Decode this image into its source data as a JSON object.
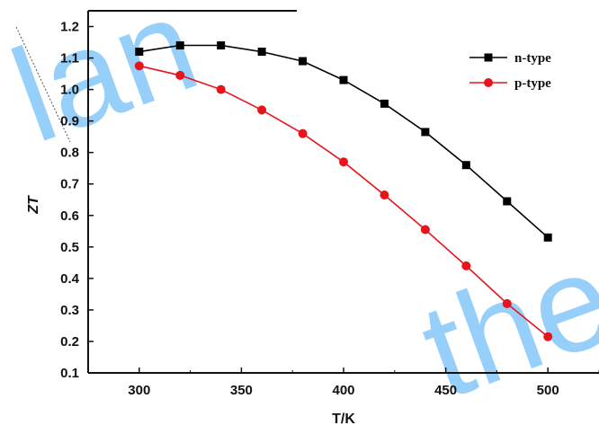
{
  "chart_data": {
    "type": "line",
    "xlabel": "T/K",
    "ylabel": "ZT",
    "xlim": [
      275,
      525
    ],
    "ylim": [
      0.1,
      1.25
    ],
    "x_ticks": [
      300,
      350,
      400,
      450,
      500
    ],
    "y_ticks": [
      0.1,
      0.2,
      0.3,
      0.4,
      0.5,
      0.6,
      0.7,
      0.8,
      0.9,
      1.0,
      1.1,
      1.2
    ],
    "grid": false,
    "legend_position": "top-right",
    "series": [
      {
        "name": "n-type",
        "marker": "square",
        "color": "#000000",
        "x": [
          300,
          320,
          340,
          360,
          380,
          400,
          420,
          440,
          460,
          480,
          500
        ],
        "y": [
          1.12,
          1.14,
          1.14,
          1.12,
          1.09,
          1.03,
          0.955,
          0.865,
          0.76,
          0.645,
          0.53
        ]
      },
      {
        "name": "p-type",
        "marker": "circle",
        "color": "#e8141b",
        "x": [
          300,
          320,
          340,
          360,
          380,
          400,
          420,
          440,
          460,
          480,
          500
        ],
        "y": [
          1.075,
          1.045,
          1.0,
          0.935,
          0.86,
          0.77,
          0.665,
          0.555,
          0.44,
          0.32,
          0.215
        ]
      }
    ],
    "watermark_color": "#3fa9f5",
    "watermark_text": [
      "lan",
      "the"
    ]
  }
}
